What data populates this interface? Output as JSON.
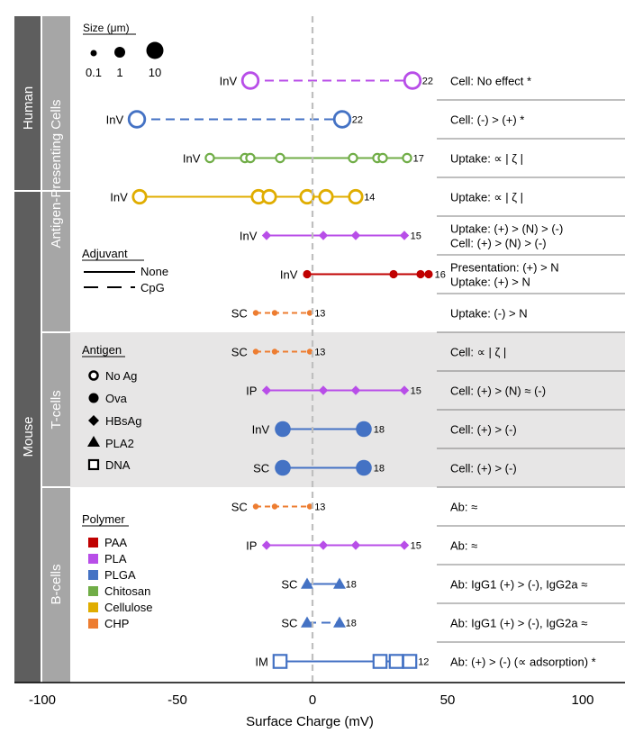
{
  "chart_data": {
    "type": "scatter",
    "xlabel": "Surface Charge (mV)",
    "xlim": [
      -100,
      100
    ],
    "x_ticks": [
      "-100",
      "-50",
      "0",
      "50",
      "100"
    ],
    "grid": false,
    "group_labels": {
      "species": [
        "Human",
        "Mouse"
      ],
      "cell_types": [
        "Antigen-Presenting Cells",
        "T-cells",
        "B-cells"
      ]
    },
    "legends": {
      "size": {
        "title": "Size (μm)",
        "labels": [
          "0.1",
          "1",
          "10"
        ]
      },
      "adjuvant": {
        "title": "Adjuvant",
        "items": [
          {
            "label": "None",
            "line": "solid"
          },
          {
            "label": "CpG",
            "line": "dashed"
          }
        ]
      },
      "antigen": {
        "title": "Antigen",
        "items": [
          {
            "label": "No Ag",
            "marker": "open-circle"
          },
          {
            "label": "Ova",
            "marker": "filled-circle"
          },
          {
            "label": "HBsAg",
            "marker": "diamond"
          },
          {
            "label": "PLA2",
            "marker": "triangle"
          },
          {
            "label": "DNA",
            "marker": "open-square"
          }
        ]
      },
      "polymer": {
        "title": "Polymer",
        "items": [
          {
            "label": "PAA",
            "color": "#c00000"
          },
          {
            "label": "PLA",
            "color": "#b84ee8"
          },
          {
            "label": "PLGA",
            "color": "#4472c4"
          },
          {
            "label": "Chitosan",
            "color": "#70ad47"
          },
          {
            "label": "Cellulose",
            "color": "#e0ad00"
          },
          {
            "label": "CHP",
            "color": "#ed7d31"
          }
        ]
      }
    },
    "rows": [
      {
        "route": "InV",
        "ref": "22",
        "polymer": "PLA",
        "color": "#b84ee8",
        "antigen": "No Ag",
        "adjuvant": "CpG",
        "size": "large",
        "x": [
          -23,
          37
        ],
        "finding": [
          "Cell: No effect *"
        ]
      },
      {
        "route": "InV",
        "ref": "22",
        "polymer": "PLGA",
        "color": "#4472c4",
        "antigen": "No Ag",
        "adjuvant": "CpG",
        "size": "large",
        "x": [
          -65,
          11
        ],
        "finding": [
          "Cell: (-) > (+) *"
        ]
      },
      {
        "route": "InV",
        "ref": "17",
        "polymer": "Chitosan",
        "color": "#70ad47",
        "antigen": "No Ag",
        "adjuvant": "None",
        "size": "small",
        "x": [
          -38,
          -25,
          -23,
          -12,
          15,
          24,
          26,
          35
        ],
        "finding": [
          "Uptake: ∝ | ζ |"
        ]
      },
      {
        "route": "InV",
        "ref": "14",
        "polymer": "Cellulose",
        "color": "#e0ad00",
        "antigen": "No Ag",
        "adjuvant": "None",
        "size": "medium",
        "x": [
          -64,
          -20,
          -16,
          -2,
          5,
          16
        ],
        "finding": [
          "Uptake: ∝ | ζ |"
        ]
      },
      {
        "route": "InV",
        "ref": "15",
        "polymer": "PLA",
        "color": "#b84ee8",
        "antigen": "HBsAg",
        "adjuvant": "None",
        "size": "small",
        "x": [
          -17,
          4,
          16,
          34
        ],
        "finding": [
          "Uptake: (+) > (N) > (-)",
          "Cell: (+) > (N) > (-)"
        ]
      },
      {
        "route": "InV",
        "ref": "16",
        "polymer": "PAA",
        "color": "#c00000",
        "antigen": "Ova",
        "adjuvant": "None",
        "size": "small",
        "x": [
          -2,
          30,
          40,
          43
        ],
        "finding": [
          "Presentation: (+) > N",
          "Uptake: (+) > N"
        ]
      },
      {
        "route": "SC",
        "ref": "13",
        "polymer": "CHP",
        "color": "#ed7d31",
        "antigen": "Ova",
        "adjuvant": "CpG",
        "size": "tiny",
        "x": [
          -21,
          -14,
          -1
        ],
        "finding": [
          "Uptake: (-) > N"
        ]
      },
      {
        "route": "SC",
        "ref": "13",
        "polymer": "CHP",
        "color": "#ed7d31",
        "antigen": "Ova",
        "adjuvant": "CpG",
        "size": "tiny",
        "x": [
          -21,
          -14,
          -1
        ],
        "finding": [
          "Cell: ∝ | ζ |"
        ]
      },
      {
        "route": "IP",
        "ref": "15",
        "polymer": "PLA",
        "color": "#b84ee8",
        "antigen": "HBsAg",
        "adjuvant": "None",
        "size": "small",
        "x": [
          -17,
          4,
          16,
          34
        ],
        "finding": [
          "Cell: (+) > (N) ≈ (-)"
        ]
      },
      {
        "route": "InV",
        "ref": "18",
        "polymer": "PLGA",
        "color": "#4472c4",
        "antigen": "Ova",
        "adjuvant": "None",
        "size": "large",
        "x": [
          -11,
          19
        ],
        "finding": [
          "Cell: (+) > (-)"
        ]
      },
      {
        "route": "SC",
        "ref": "18",
        "polymer": "PLGA",
        "color": "#4472c4",
        "antigen": "Ova",
        "adjuvant": "None",
        "size": "large",
        "x": [
          -11,
          19
        ],
        "finding": [
          "Cell: (+) > (-)"
        ]
      },
      {
        "route": "SC",
        "ref": "13",
        "polymer": "CHP",
        "color": "#ed7d31",
        "antigen": "Ova",
        "adjuvant": "CpG",
        "size": "tiny",
        "x": [
          -21,
          -14,
          -1
        ],
        "finding": [
          "Ab: ≈"
        ]
      },
      {
        "route": "IP",
        "ref": "15",
        "polymer": "PLA",
        "color": "#b84ee8",
        "antigen": "HBsAg",
        "adjuvant": "None",
        "size": "small",
        "x": [
          -17,
          4,
          16,
          34
        ],
        "finding": [
          "Ab: ≈"
        ]
      },
      {
        "route": "SC",
        "ref": "18",
        "polymer": "PLGA",
        "color": "#4472c4",
        "antigen": "PLA2",
        "adjuvant": "None",
        "size": "small",
        "x": [
          -2,
          10
        ],
        "finding": [
          "Ab: IgG1 (+) > (-), IgG2a ≈"
        ]
      },
      {
        "route": "SC",
        "ref": "18",
        "polymer": "PLGA",
        "color": "#4472c4",
        "antigen": "PLA2",
        "adjuvant": "CpG",
        "size": "small",
        "x": [
          -2,
          10
        ],
        "finding": [
          "Ab: IgG1 (+) > (-), IgG2a ≈"
        ]
      },
      {
        "route": "IM",
        "ref": "12",
        "polymer": "PLGA",
        "color": "#4472c4",
        "antigen": "DNA",
        "adjuvant": "None",
        "size": "medium",
        "x": [
          -12,
          25,
          31,
          36
        ],
        "finding": [
          "Ab: (+) > (-) (∝ adsorption) *"
        ]
      }
    ]
  }
}
